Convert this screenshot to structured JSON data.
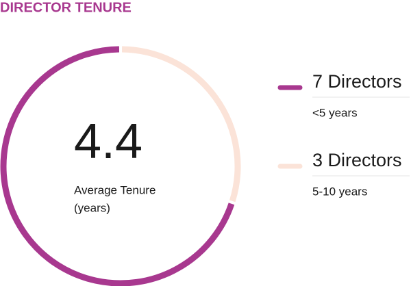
{
  "chart_data": {
    "type": "donut",
    "title": "DIRECTOR TENURE",
    "center_value": 4.4,
    "center_label": [
      "Average Tenure",
      "(years)"
    ],
    "categories": [
      "<5 years",
      "5-10 years"
    ],
    "values": [
      7,
      3
    ],
    "value_labels": [
      "7 Directors",
      "3 Directors"
    ],
    "colors": [
      "#a8388f",
      "#fbe3d8"
    ]
  }
}
